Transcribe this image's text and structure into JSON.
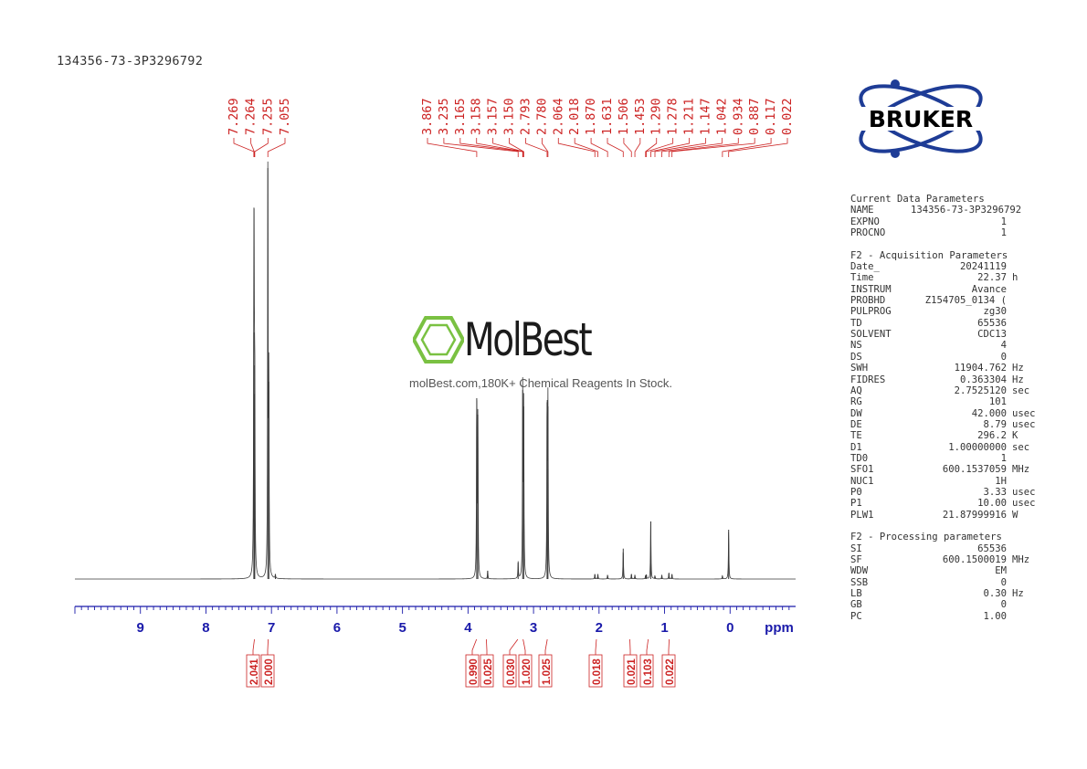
{
  "sample_id": "134356-73-3P3296792",
  "logo": {
    "text": "BRUKER"
  },
  "watermark": {
    "brand": "MolBest",
    "tagline": "molBest.com,180K+ Chemical Reagents In Stock."
  },
  "colors": {
    "spectrum": "#3a3a3a",
    "peak_labels": "#cc2222",
    "axis": "#1a1aaa",
    "integrals": "#cc2222",
    "logo": "#1e3c96",
    "watermark_icon": "#7ac142"
  },
  "params": {
    "current": {
      "title": "Current Data Parameters",
      "rows": [
        {
          "name": "NAME",
          "value": "134356-73-3P3296792",
          "unit": ""
        },
        {
          "name": "EXPNO",
          "value": "1",
          "unit": ""
        },
        {
          "name": "PROCNO",
          "value": "1",
          "unit": ""
        }
      ]
    },
    "acquisition": {
      "title": "F2 - Acquisition Parameters",
      "rows": [
        {
          "name": "Date_",
          "value": "20241119",
          "unit": ""
        },
        {
          "name": "Time",
          "value": "22.37",
          "unit": "h"
        },
        {
          "name": "INSTRUM",
          "value": "Avance",
          "unit": ""
        },
        {
          "name": "PROBHD",
          "value": "Z154705_0134 (",
          "unit": ""
        },
        {
          "name": "PULPROG",
          "value": "zg30",
          "unit": ""
        },
        {
          "name": "TD",
          "value": "65536",
          "unit": ""
        },
        {
          "name": "SOLVENT",
          "value": "CDC13",
          "unit": ""
        },
        {
          "name": "NS",
          "value": "4",
          "unit": ""
        },
        {
          "name": "DS",
          "value": "0",
          "unit": ""
        },
        {
          "name": "SWH",
          "value": "11904.762",
          "unit": "Hz"
        },
        {
          "name": "FIDRES",
          "value": "0.363304",
          "unit": "Hz"
        },
        {
          "name": "AQ",
          "value": "2.7525120",
          "unit": "sec"
        },
        {
          "name": "RG",
          "value": "101",
          "unit": ""
        },
        {
          "name": "DW",
          "value": "42.000",
          "unit": "usec"
        },
        {
          "name": "DE",
          "value": "8.79",
          "unit": "usec"
        },
        {
          "name": "TE",
          "value": "296.2",
          "unit": "K"
        },
        {
          "name": "D1",
          "value": "1.00000000",
          "unit": "sec"
        },
        {
          "name": "TD0",
          "value": "1",
          "unit": ""
        },
        {
          "name": "SFO1",
          "value": "600.1537059",
          "unit": "MHz"
        },
        {
          "name": "NUC1",
          "value": "1H",
          "unit": ""
        },
        {
          "name": "P0",
          "value": "3.33",
          "unit": "usec"
        },
        {
          "name": "P1",
          "value": "10.00",
          "unit": "usec"
        },
        {
          "name": "PLW1",
          "value": "21.87999916",
          "unit": "W"
        }
      ]
    },
    "processing": {
      "title": "F2 - Processing parameters",
      "rows": [
        {
          "name": "SI",
          "value": "65536",
          "unit": ""
        },
        {
          "name": "SF",
          "value": "600.1500019",
          "unit": "MHz"
        },
        {
          "name": "WDW",
          "value": "EM",
          "unit": ""
        },
        {
          "name": "SSB",
          "value": "0",
          "unit": ""
        },
        {
          "name": "LB",
          "value": "0.30",
          "unit": "Hz"
        },
        {
          "name": "GB",
          "value": "0",
          "unit": ""
        },
        {
          "name": "PC",
          "value": "1.00",
          "unit": ""
        }
      ]
    }
  },
  "chart_data": {
    "type": "line",
    "xlabel": "ppm",
    "x_range": [
      10.0,
      -1.0
    ],
    "x_reversed": true,
    "x_ticks": [
      9,
      8,
      7,
      6,
      5,
      4,
      3,
      2,
      1,
      0
    ],
    "peak_labels": [
      "7.269",
      "7.264",
      "7.255",
      "7.055",
      "3.867",
      "3.235",
      "3.165",
      "3.158",
      "3.157",
      "3.150",
      "2.793",
      "2.780",
      "2.064",
      "2.018",
      "1.870",
      "1.631",
      "1.506",
      "1.453",
      "1.290",
      "1.278",
      "1.211",
      "1.147",
      "1.042",
      "0.934",
      "0.887",
      "0.117",
      "0.022"
    ],
    "peaks": [
      {
        "ppm": 7.269,
        "height": 0.6
      },
      {
        "ppm": 7.264,
        "height": 0.52
      },
      {
        "ppm": 7.255,
        "height": 0.45
      },
      {
        "ppm": 7.055,
        "height": 1.0
      },
      {
        "ppm": 7.04,
        "height": 0.48
      },
      {
        "ppm": 6.94,
        "height": 0.01
      },
      {
        "ppm": 3.867,
        "height": 0.44
      },
      {
        "ppm": 3.85,
        "height": 0.4
      },
      {
        "ppm": 3.7,
        "height": 0.02
      },
      {
        "ppm": 3.235,
        "height": 0.04
      },
      {
        "ppm": 3.165,
        "height": 0.46
      },
      {
        "ppm": 3.15,
        "height": 0.42
      },
      {
        "ppm": 2.793,
        "height": 0.43
      },
      {
        "ppm": 2.78,
        "height": 0.42
      },
      {
        "ppm": 2.064,
        "height": 0.012
      },
      {
        "ppm": 2.018,
        "height": 0.012
      },
      {
        "ppm": 1.87,
        "height": 0.01
      },
      {
        "ppm": 1.631,
        "height": 0.074
      },
      {
        "ppm": 1.506,
        "height": 0.012
      },
      {
        "ppm": 1.453,
        "height": 0.01
      },
      {
        "ppm": 1.29,
        "height": 0.008
      },
      {
        "ppm": 1.278,
        "height": 0.01
      },
      {
        "ppm": 1.211,
        "height": 0.14
      },
      {
        "ppm": 1.147,
        "height": 0.008
      },
      {
        "ppm": 1.042,
        "height": 0.01
      },
      {
        "ppm": 0.934,
        "height": 0.015
      },
      {
        "ppm": 0.887,
        "height": 0.012
      },
      {
        "ppm": 0.117,
        "height": 0.008
      },
      {
        "ppm": 0.022,
        "height": 0.12
      }
    ],
    "integrals": [
      {
        "ppm": 7.26,
        "value": "2.041"
      },
      {
        "ppm": 7.05,
        "value": "2.000"
      },
      {
        "ppm": 3.87,
        "value": "0.990"
      },
      {
        "ppm": 3.72,
        "value": "0.025"
      },
      {
        "ppm": 3.24,
        "value": "0.030"
      },
      {
        "ppm": 3.16,
        "value": "1.020"
      },
      {
        "ppm": 2.79,
        "value": "1.025"
      },
      {
        "ppm": 2.04,
        "value": "0.018"
      },
      {
        "ppm": 1.53,
        "value": "0.021"
      },
      {
        "ppm": 1.25,
        "value": "0.103"
      },
      {
        "ppm": 0.93,
        "value": "0.022"
      }
    ]
  }
}
